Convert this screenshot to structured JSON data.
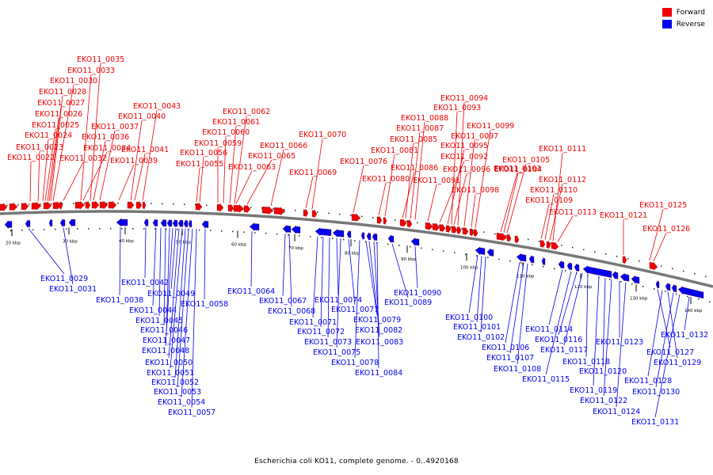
{
  "legend": {
    "forward_label": "Forward",
    "reverse_label": "Reverse",
    "forward_color": "#ee0000",
    "reverse_color": "#0000ee"
  },
  "caption": "Escherichia coli KO11, complete genome. - 0..4920168",
  "colors": {
    "backbone": "#777777",
    "tick": "#000000"
  },
  "scale": {
    "ticks": [
      "20 kbp",
      "30 kbp",
      "40 kbp",
      "50 kbp",
      "60 kbp",
      "70 kbp",
      "80 kbp",
      "90 kbp",
      "100 kbp",
      "110 kbp",
      "120 kbp",
      "130 kbp",
      "140 kbp"
    ]
  },
  "forward_genes": [
    "EKO11_0022",
    "EKO11_0023",
    "EKO11_0024",
    "EKO11_0025",
    "EKO11_0026",
    "EKO11_0027",
    "EKO11_0028",
    "EKO11_0030",
    "EKO11_0032",
    "EKO11_0033",
    "EKO11_0034",
    "EKO11_0035",
    "EKO11_0036",
    "EKO11_0037",
    "EKO11_0039",
    "EKO11_0040",
    "EKO11_0041",
    "EKO11_0043",
    "EKO11_0055",
    "EKO11_0056",
    "EKO11_0059",
    "EKO11_0060",
    "EKO11_0061",
    "EKO11_0062",
    "EKO11_0063",
    "EKO11_0065",
    "EKO11_0066",
    "EKO11_0069",
    "EKO11_0070",
    "EKO11_0076",
    "EKO11_0080",
    "EKO11_0081",
    "EKO11_0085",
    "EKO11_0086",
    "EKO11_0087",
    "EKO11_0088",
    "EKO11_0091",
    "EKO11_0092",
    "EKO11_0093",
    "EKO11_0094",
    "EKO11_0095",
    "EKO11_0096",
    "EKO11_0097",
    "EKO11_0098",
    "EKO11_0099",
    "EKO11_0103",
    "EKO11_0104",
    "EKO11_0105",
    "EKO11_0109",
    "EKO11_0110",
    "EKO11_0111",
    "EKO11_0112",
    "EKO11_0113",
    "EKO11_0121",
    "EKO11_0125",
    "EKO11_0126"
  ],
  "reverse_genes": [
    "EKO11_0029",
    "EKO11_0031",
    "EKO11_0038",
    "EKO11_0042",
    "EKO11_0044",
    "EKO11_0045",
    "EKO11_0046",
    "EKO11_0047",
    "EKO11_0048",
    "EKO11_0049",
    "EKO11_0050",
    "EKO11_0051",
    "EKO11_0052",
    "EKO11_0053",
    "EKO11_0054",
    "EKO11_0057",
    "EKO11_0058",
    "EKO11_0064",
    "EKO11_0067",
    "EKO11_0068",
    "EKO11_0071",
    "EKO11_0072",
    "EKO11_0073",
    "EKO11_0074",
    "EKO11_0075",
    "EKO11_0077",
    "EKO11_0078",
    "EKO11_0079",
    "EKO11_0082",
    "EKO11_0083",
    "EKO11_0084",
    "EKO11_0089",
    "EKO11_0090",
    "EKO11_0100",
    "EKO11_0101",
    "EKO11_0102",
    "EKO11_0106",
    "EKO11_0107",
    "EKO11_0108",
    "EKO11_0114",
    "EKO11_0115",
    "EKO11_0116",
    "EKO11_0117",
    "EKO11_0118",
    "EKO11_0119",
    "EKO11_0120",
    "EKO11_0122",
    "EKO11_0123",
    "EKO11_0124",
    "EKO11_0127",
    "EKO11_0128",
    "EKO11_0129",
    "EKO11_0130",
    "EKO11_0131",
    "EKO11_0132"
  ]
}
